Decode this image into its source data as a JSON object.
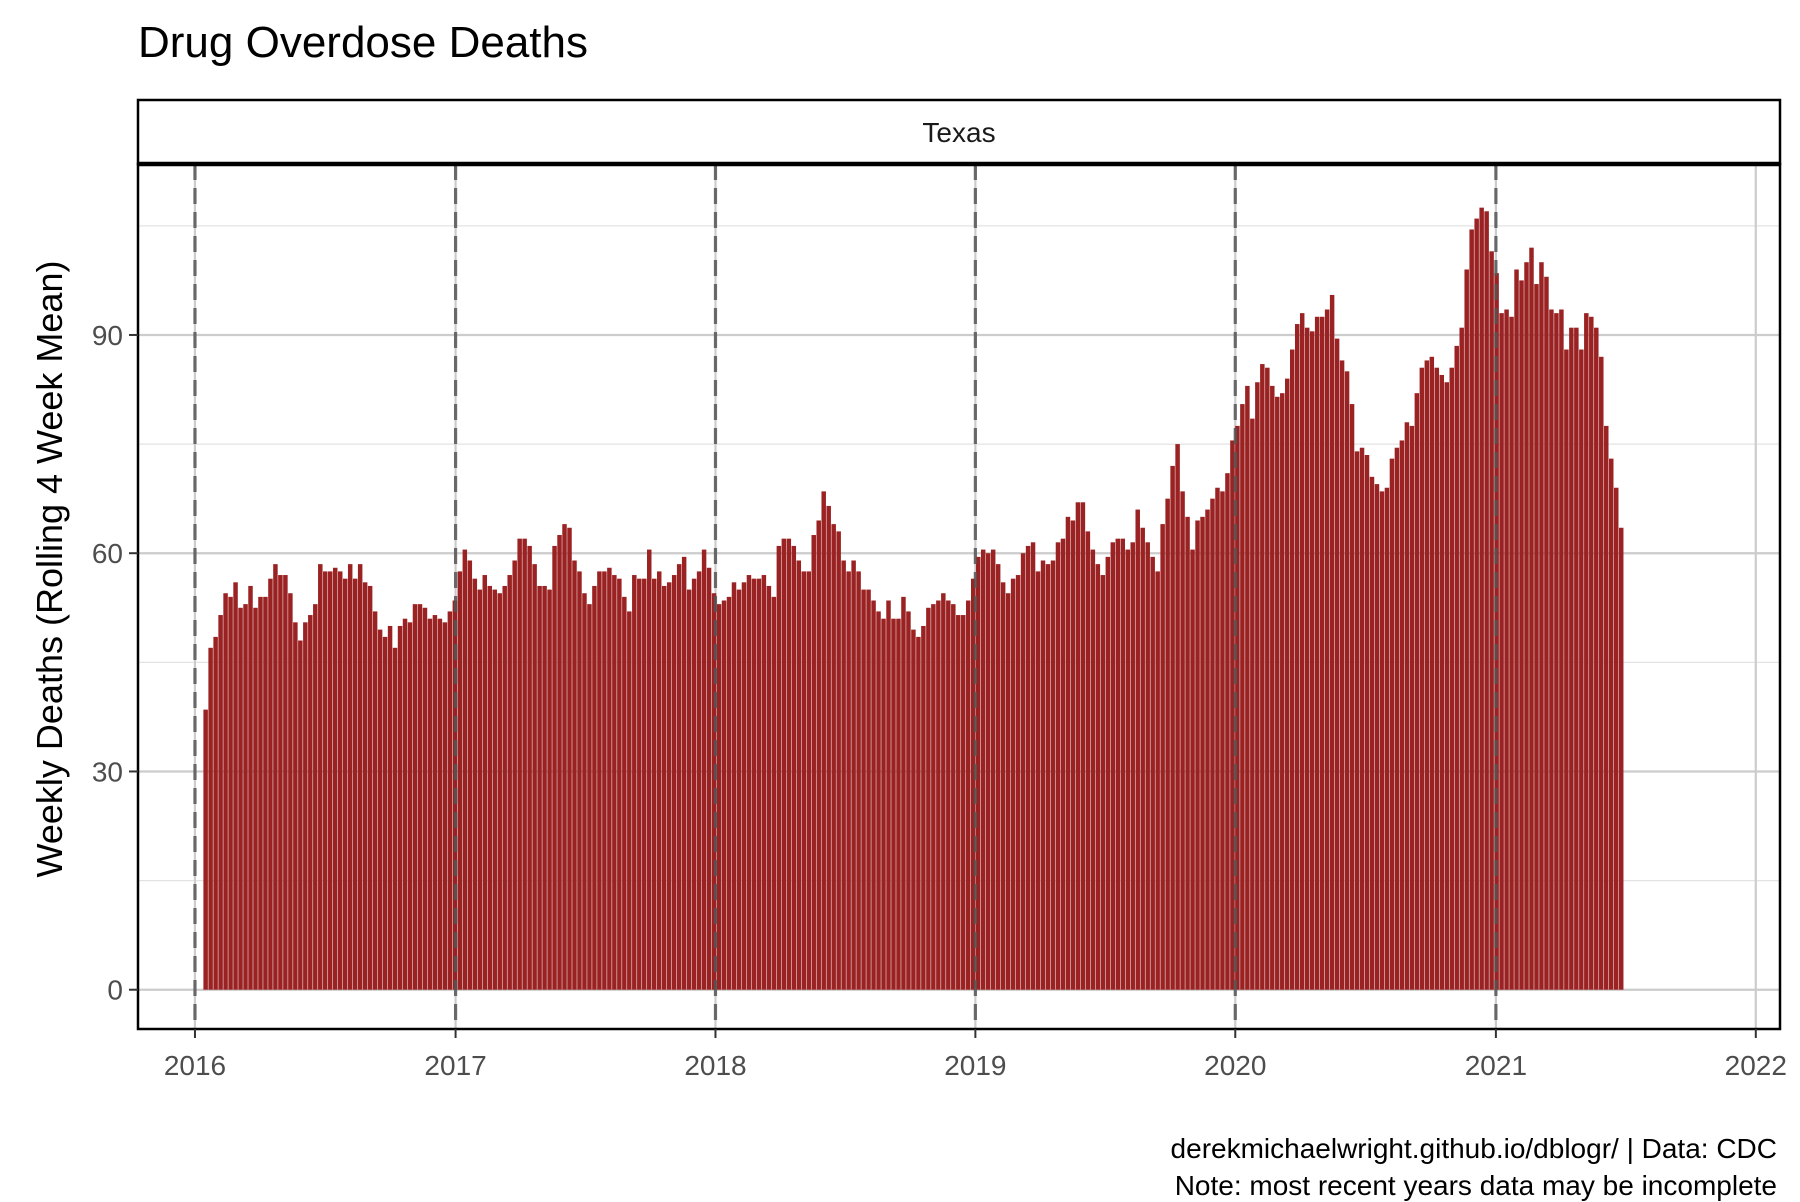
{
  "chart_data": {
    "type": "bar",
    "title": "Drug Overdose Deaths",
    "facet": "Texas",
    "xlabel": "",
    "ylabel": "Weekly Deaths (Rolling 4 Week Mean)",
    "x_ticks": [
      "2016",
      "2017",
      "2018",
      "2019",
      "2020",
      "2021",
      "2022"
    ],
    "y_ticks": [
      0,
      30,
      60,
      90
    ],
    "xlim": [
      "2015-10-13",
      "2022-02-04"
    ],
    "ylim": [
      -5.4,
      113.5
    ],
    "vlines_dashed": [
      "2016-01-01",
      "2017-01-01",
      "2018-01-01",
      "2019-01-01",
      "2020-01-01",
      "2021-01-01"
    ],
    "grid": true,
    "bar_color": "#9b2222",
    "series": [
      {
        "week_start": "2016-01-16",
        "week_step_days": 7,
        "values": [
          38.5,
          47,
          48.5,
          51.5,
          54.5,
          54,
          56,
          52.5,
          53,
          55.5,
          52.5,
          54,
          54,
          56.5,
          58.5,
          57,
          57,
          54.5,
          50.5,
          48,
          50.5,
          51.5,
          53,
          58.5,
          57.5,
          57.5,
          58,
          57.5,
          56.5,
          58.5,
          56.5,
          58.5,
          56,
          55.5,
          52,
          49.5,
          48.5,
          50,
          47,
          50,
          51,
          50.5,
          53,
          53,
          52.5,
          51,
          51.5,
          51,
          50.5,
          52,
          53.5,
          57.5,
          60.5,
          59,
          56.5,
          55,
          57,
          55.5,
          55,
          54.5,
          55.5,
          57,
          59,
          62,
          62,
          61,
          58.5,
          55.5,
          55.5,
          55,
          61,
          62.5,
          64,
          63.5,
          59,
          57.5,
          54.5,
          53,
          55.5,
          57.5,
          57.5,
          58,
          57,
          56.5,
          54,
          52,
          57,
          56.5,
          56.5,
          60.5,
          56.5,
          57.5,
          55.5,
          56,
          57,
          58.5,
          59.5,
          55,
          56.5,
          57.5,
          60.5,
          58,
          54.5,
          53,
          53.5,
          54,
          56,
          55,
          56,
          57,
          56.5,
          56.5,
          57,
          55.5,
          54,
          61,
          62,
          62,
          61,
          59,
          57.5,
          57.5,
          62.5,
          64.5,
          68.5,
          66.5,
          64,
          63,
          59,
          57.5,
          59,
          57.5,
          55,
          55,
          53.5,
          52,
          51,
          53.5,
          51,
          51,
          54,
          52,
          49.5,
          48.5,
          50,
          52.5,
          53,
          53.5,
          54.5,
          53.5,
          53,
          51.5,
          51.5,
          53.5,
          56.5,
          59.5,
          60.5,
          60,
          60.5,
          58.5,
          56,
          54.5,
          56.5,
          57,
          60,
          61,
          61.5,
          57.5,
          59,
          58.5,
          59,
          61.5,
          62,
          65,
          64.5,
          67,
          67,
          63,
          60.5,
          58.5,
          57,
          59.5,
          61.5,
          62,
          62,
          60.5,
          61.5,
          66,
          63.5,
          61.5,
          59.5,
          57.5,
          64,
          67.5,
          72,
          75,
          68.5,
          65,
          60.5,
          64.5,
          65,
          66,
          67.5,
          69,
          68.5,
          71,
          75.5,
          77.5,
          80.5,
          83,
          78.5,
          83.5,
          86,
          85.5,
          83,
          81.5,
          82,
          84,
          88,
          91.5,
          93,
          91,
          90.5,
          92.5,
          92.5,
          93.5,
          95.5,
          89.5,
          86.5,
          85,
          80.5,
          74,
          74.5,
          73.5,
          70.5,
          69.5,
          68.5,
          69,
          73,
          74.5,
          75.5,
          78,
          77.5,
          82,
          85.5,
          86.5,
          87,
          85.5,
          84.5,
          83.5,
          85.5,
          88.5,
          91,
          99,
          104.5,
          106,
          107.5,
          107,
          101.5,
          98.5,
          93,
          93.5,
          92.5,
          99,
          97.5,
          100,
          102,
          97,
          100,
          98,
          93.5,
          93,
          93.5,
          88,
          91,
          91,
          88,
          93,
          92.5,
          91,
          87,
          77.5,
          73,
          69,
          63.5
        ]
      }
    ]
  },
  "caption": {
    "line1": "derekmichaelwright.github.io/dblogr/ | Data: CDC",
    "line2": "Note: most recent years data may be incomplete"
  },
  "colors": {
    "bar": "#9b2222",
    "grid_major": "#cccccc",
    "grid_minor": "#e3e3e3",
    "vline": "#555555",
    "axis_text": "#4d4d4d"
  }
}
